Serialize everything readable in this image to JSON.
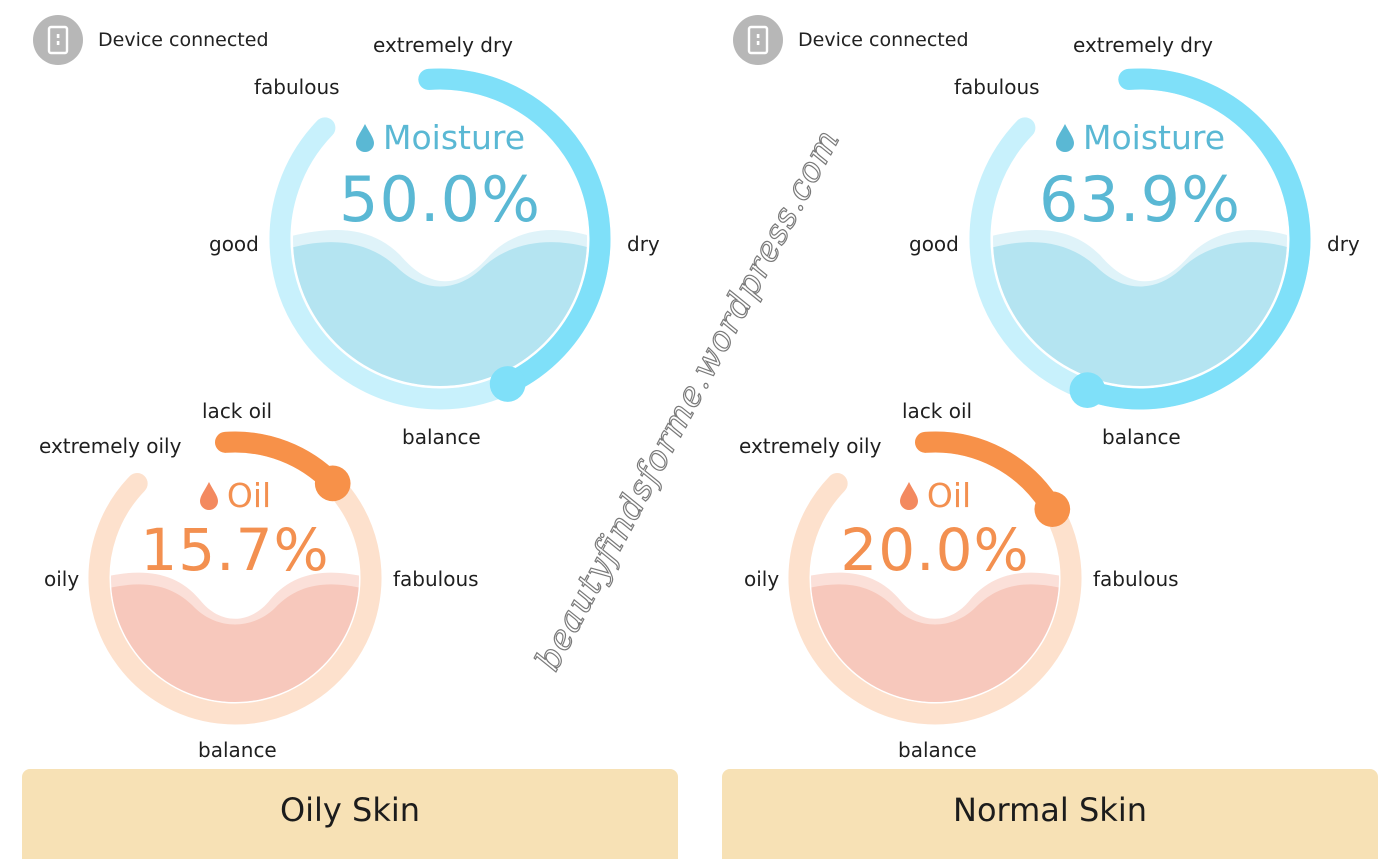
{
  "panels": [
    {
      "device_status": "Device connected",
      "moisture": {
        "title": "Moisture",
        "value": "50.0%",
        "value_fraction": 0.5,
        "labels": {
          "top": "extremely dry",
          "top_left": "fabulous",
          "left": "good",
          "right": "dry",
          "bottom": "balance"
        }
      },
      "oil": {
        "title": "Oil",
        "value": "15.7%",
        "value_fraction": 0.157,
        "labels": {
          "top": "lack oil",
          "top_left": "extremely oily",
          "left": "oily",
          "right": "fabulous",
          "bottom": "balance"
        }
      },
      "skin_type": "Oily Skin"
    },
    {
      "device_status": "Device connected",
      "moisture": {
        "title": "Moisture",
        "value": "63.9%",
        "value_fraction": 0.639,
        "labels": {
          "top": "extremely dry",
          "top_left": "fabulous",
          "left": "good",
          "right": "dry",
          "bottom": "balance"
        }
      },
      "oil": {
        "title": "Oil",
        "value": "20.0%",
        "value_fraction": 0.2,
        "labels": {
          "top": "lack oil",
          "top_left": "extremely oily",
          "left": "oily",
          "right": "fabulous",
          "bottom": "balance"
        }
      },
      "skin_type": "Normal Skin"
    }
  ],
  "watermark": "beautyfindsforme.wordpress.com",
  "icons": {
    "device": "device-icon",
    "drop": "water-drop-icon"
  },
  "colors": {
    "moisture_arc": "#7fe0f9",
    "moisture_track": "#c8f1fc",
    "moisture_text": "#5ab8d4",
    "moisture_fill": "#b4e4f1",
    "oil_arc": "#f79149",
    "oil_track": "#fde1cd",
    "oil_text": "#f39050",
    "oil_fill": "#f7c8bc",
    "skin_bar": "#f7e1b5"
  }
}
